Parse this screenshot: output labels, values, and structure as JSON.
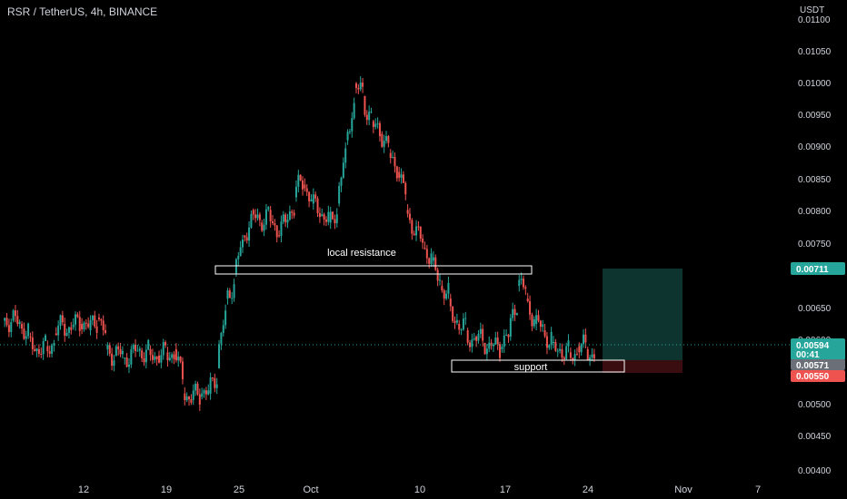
{
  "header": {
    "title": "RSR / TetherUS, 4h, BINANCE"
  },
  "colors": {
    "background": "#000000",
    "up": "#26a69a",
    "down": "#ef5350",
    "text": "#d1d4dc",
    "price_line": "#26a69a",
    "box_stroke": "#ffffff",
    "target_zone": "#0f3d36",
    "stop_zone": "#3d0f12"
  },
  "chart_data": {
    "type": "candlestick",
    "title": "RSR / TetherUS, 4h, BINANCE",
    "unit": "USDT",
    "ylim": [
      0.00385,
      0.0112
    ],
    "y_ticks": [
      "0.00400",
      "0.00450",
      "0.00500",
      "0.00550",
      "0.00600",
      "0.00650",
      "0.00700",
      "0.00750",
      "0.00800",
      "0.00850",
      "0.00900",
      "0.00950",
      "0.01000",
      "0.01050",
      "0.01100"
    ],
    "x_ticks": [
      "12",
      "19",
      "25",
      "Oct",
      "10",
      "17",
      "24",
      "Nov",
      "7"
    ],
    "series_close": [
      0.00645,
      0.0064,
      0.0062,
      0.006,
      0.00605,
      0.00625,
      0.0064,
      0.00635,
      0.0064,
      0.0063,
      0.0065,
      0.006,
      0.0059,
      0.00585,
      0.006,
      0.00598,
      0.006,
      0.0059,
      0.00595,
      0.006,
      0.0053,
      0.0052,
      0.00525,
      0.0053,
      0.0057,
      0.0068,
      0.0072,
      0.0078,
      0.0082,
      0.008,
      0.0082,
      0.0078,
      0.008,
      0.0084,
      0.0086,
      0.0083,
      0.0081,
      0.008,
      0.0083,
      0.0093,
      0.0102,
      0.01,
      0.0096,
      0.0094,
      0.0091,
      0.0088,
      0.0082,
      0.0078,
      0.0076,
      0.0074,
      0.007,
      0.0068,
      0.0064,
      0.0063,
      0.0062,
      0.0061,
      0.00605,
      0.006,
      0.0062,
      0.007,
      0.0068,
      0.0064,
      0.0063,
      0.0061,
      0.006,
      0.00595,
      0.00605,
      0.006,
      0.00594
    ],
    "prices": {
      "current": "0.00594",
      "countdown": "00:41",
      "entry": "0.00571",
      "target": "0.00711",
      "stop": "0.00550"
    },
    "annotations": [
      {
        "text": "local resistance",
        "price": 0.00707
      },
      {
        "text": "support",
        "price": 0.0056
      }
    ]
  }
}
